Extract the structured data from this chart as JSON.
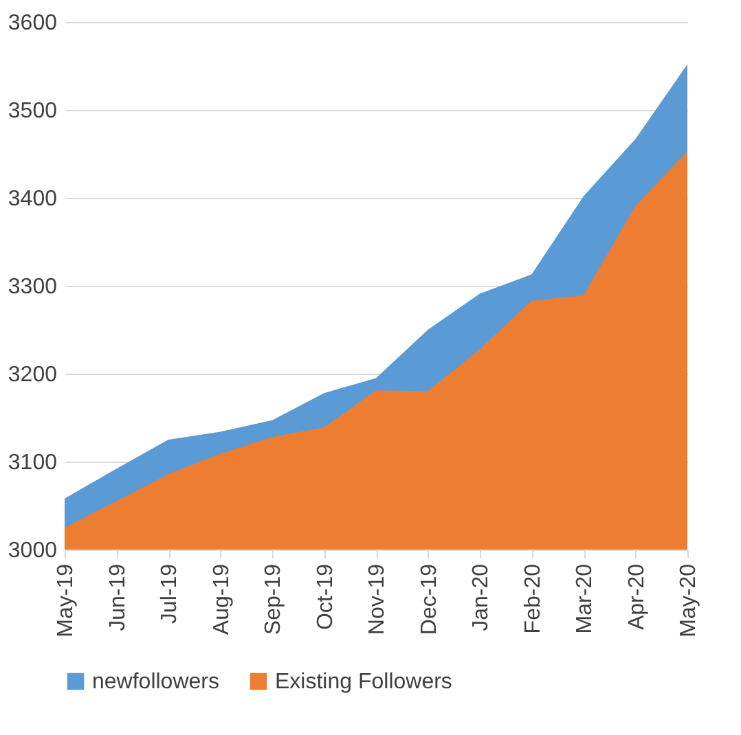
{
  "chart_data": {
    "type": "area",
    "categories": [
      "May-19",
      "Jun-19",
      "Jul-19",
      "Aug-19",
      "Sep-19",
      "Oct-19",
      "Nov-19",
      "Dec-19",
      "Jan-20",
      "Feb-20",
      "Mar-20",
      "Apr-20",
      "May-20"
    ],
    "series": [
      {
        "name": "newfollowers",
        "color": "#5b9bd5",
        "values": [
          3058,
          3092,
          3125,
          3134,
          3147,
          3178,
          3195,
          3250,
          3291,
          3313,
          3402,
          3467,
          3552
        ]
      },
      {
        "name": "Existing Followers",
        "color": "#ed7d31",
        "values": [
          3025,
          3055,
          3086,
          3109,
          3128,
          3139,
          3181,
          3180,
          3228,
          3283,
          3289,
          3391,
          3453
        ]
      }
    ],
    "ylim": [
      3000,
      3600
    ],
    "yticks": [
      3000,
      3100,
      3200,
      3300,
      3400,
      3500,
      3600
    ],
    "grid": "y",
    "legend": "bottom"
  }
}
